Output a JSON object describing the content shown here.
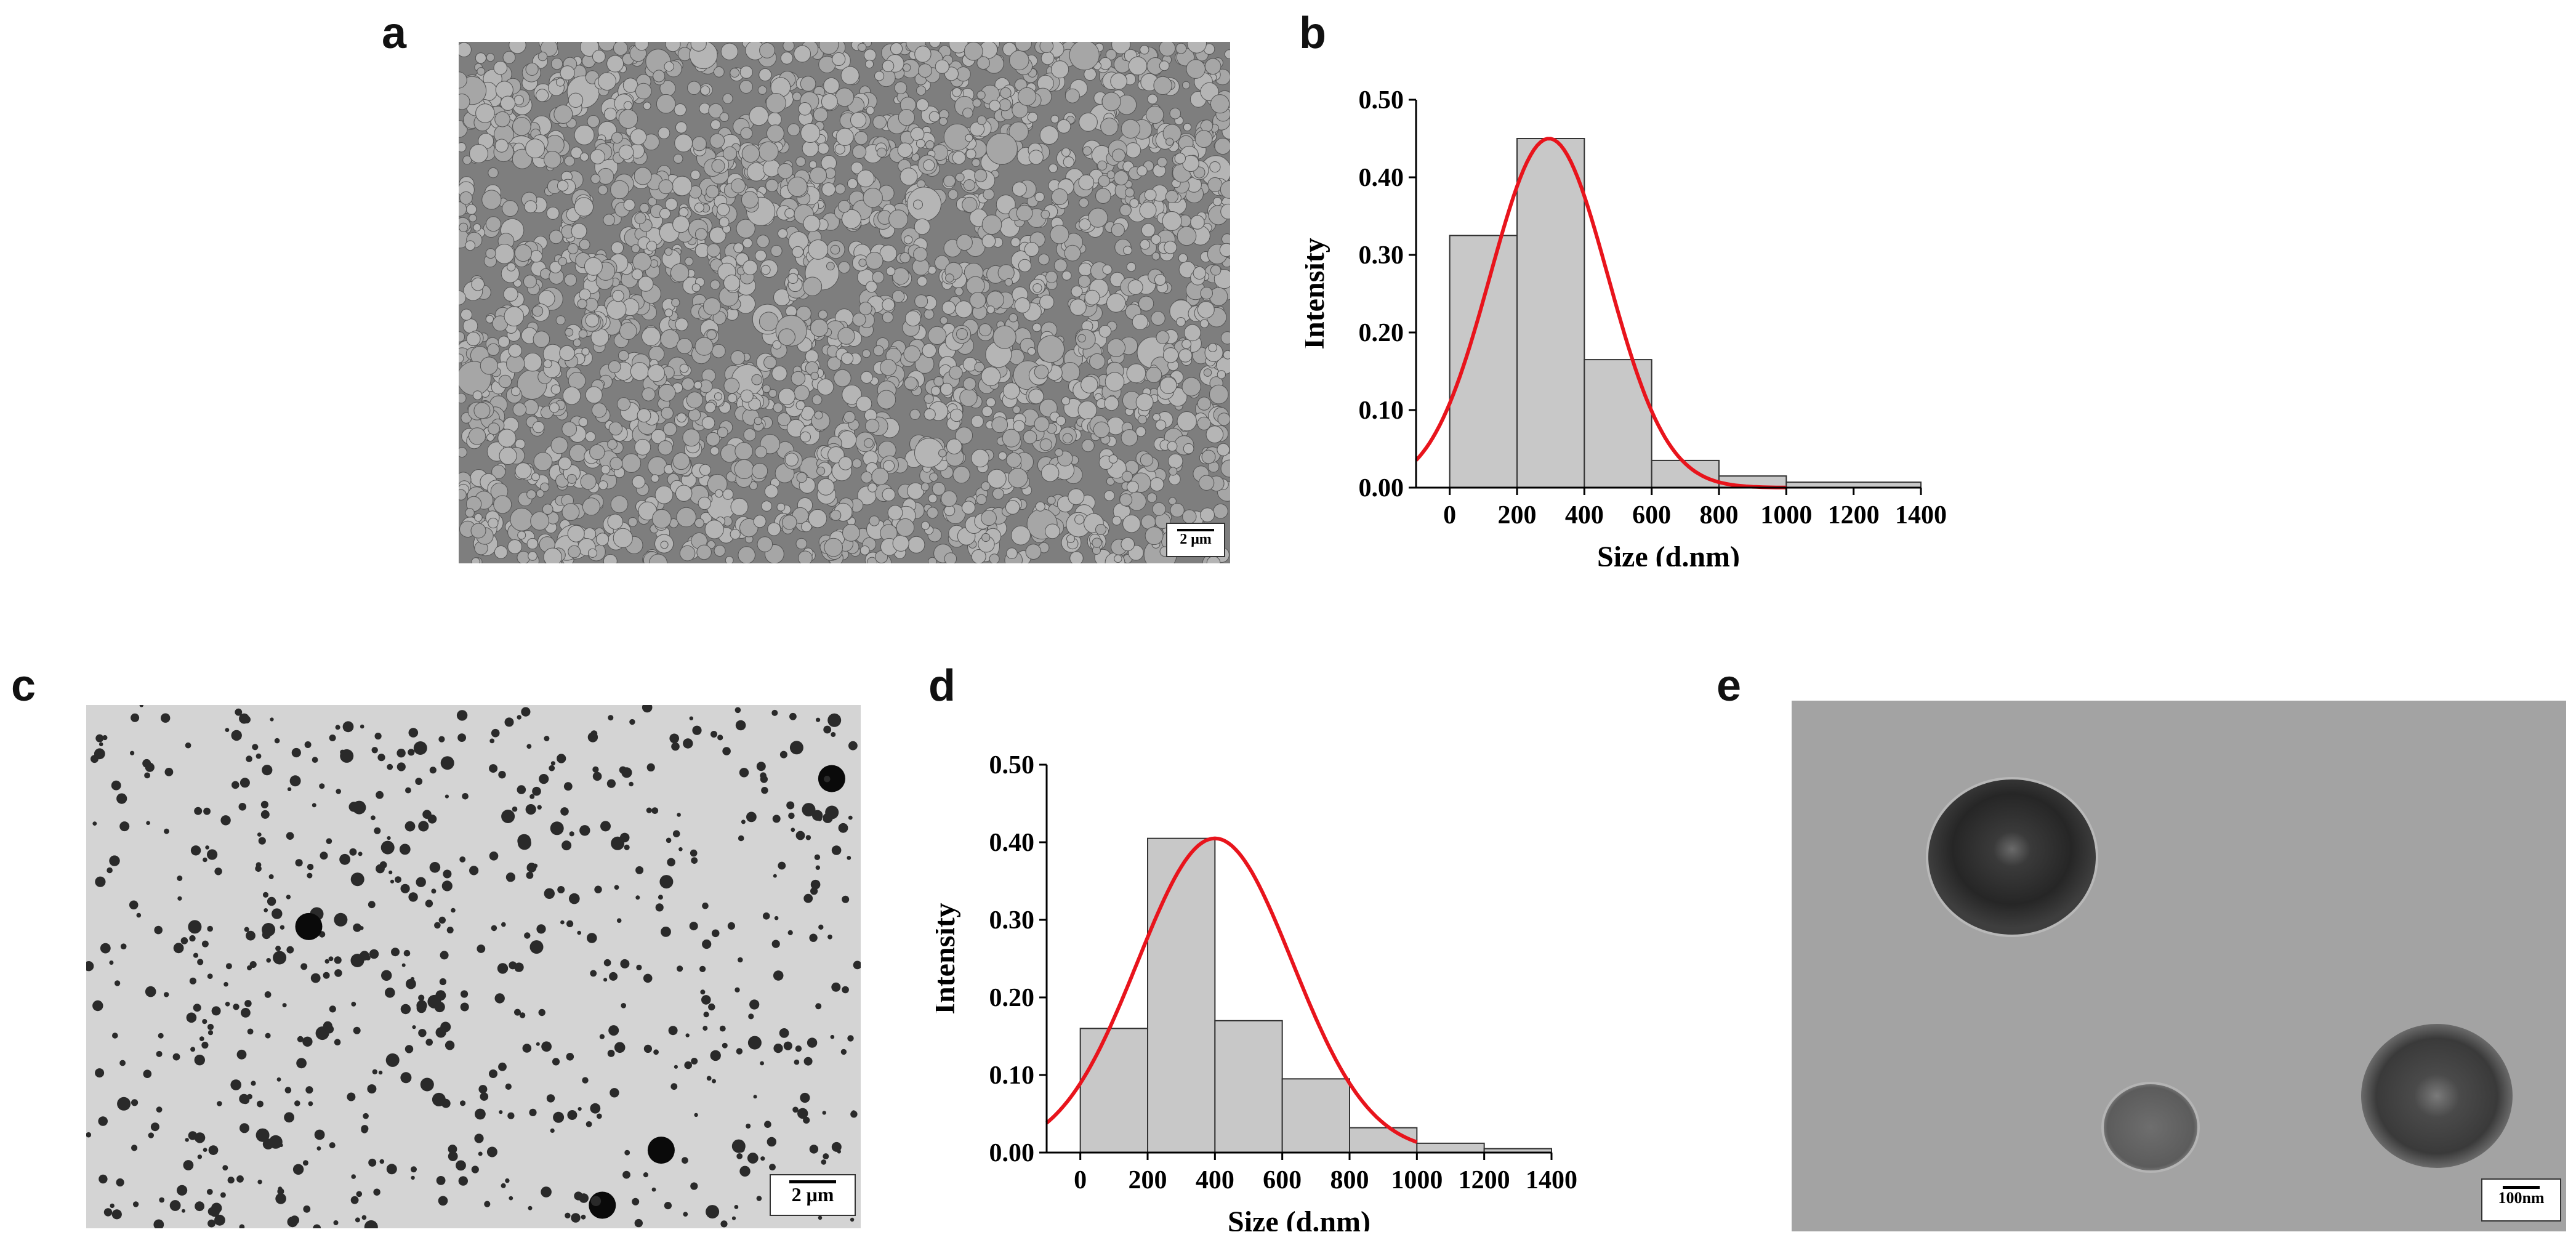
{
  "panels": {
    "a": {
      "letter": "a",
      "scalebar": "2 μm"
    },
    "b": {
      "letter": "b"
    },
    "c": {
      "letter": "c",
      "scalebar": "2 μm"
    },
    "d": {
      "letter": "d"
    },
    "e": {
      "letter": "e",
      "scalebar": "100nm"
    }
  },
  "colors": {
    "bar_fill": "#c8c8c8",
    "bar_stroke": "#333333",
    "fit_curve": "#e8141c"
  },
  "chart_data": [
    {
      "panel": "b",
      "type": "bar",
      "title": "",
      "xlabel": "Size (d.nm)",
      "ylabel": "Intensity",
      "bin_edges": [
        0,
        200,
        400,
        600,
        800,
        1000,
        1400
      ],
      "values": [
        0.325,
        0.45,
        0.165,
        0.035,
        0.015,
        0.007
      ],
      "xlim": [
        -100,
        1400
      ],
      "ylim": [
        0,
        0.5
      ],
      "xticks": [
        "0",
        "200",
        "400",
        "600",
        "800",
        "1000",
        "1200",
        "1400"
      ],
      "yticks": [
        "0.00",
        "0.10",
        "0.20",
        "0.30",
        "0.40",
        "0.50"
      ],
      "fit": {
        "type": "gaussian",
        "peak_x": 295,
        "peak_y": 0.45,
        "sigma": 175
      },
      "grid": false,
      "legend": "none"
    },
    {
      "panel": "d",
      "type": "bar",
      "title": "",
      "xlabel": "Size (d.nm)",
      "ylabel": "Intensity",
      "bin_edges": [
        0,
        200,
        400,
        600,
        800,
        1000,
        1200,
        1400
      ],
      "values": [
        0.16,
        0.405,
        0.17,
        0.095,
        0.032,
        0.012,
        0.005
      ],
      "xlim": [
        -100,
        1400
      ],
      "ylim": [
        0,
        0.5
      ],
      "xticks": [
        "0",
        "200",
        "400",
        "600",
        "800",
        "1000",
        "1200",
        "1400"
      ],
      "yticks": [
        "0.00",
        "0.10",
        "0.20",
        "0.30",
        "0.40",
        "0.50"
      ],
      "fit": {
        "type": "gaussian",
        "peak_x": 400,
        "peak_y": 0.405,
        "sigma": 230
      },
      "grid": false,
      "legend": "none"
    }
  ]
}
